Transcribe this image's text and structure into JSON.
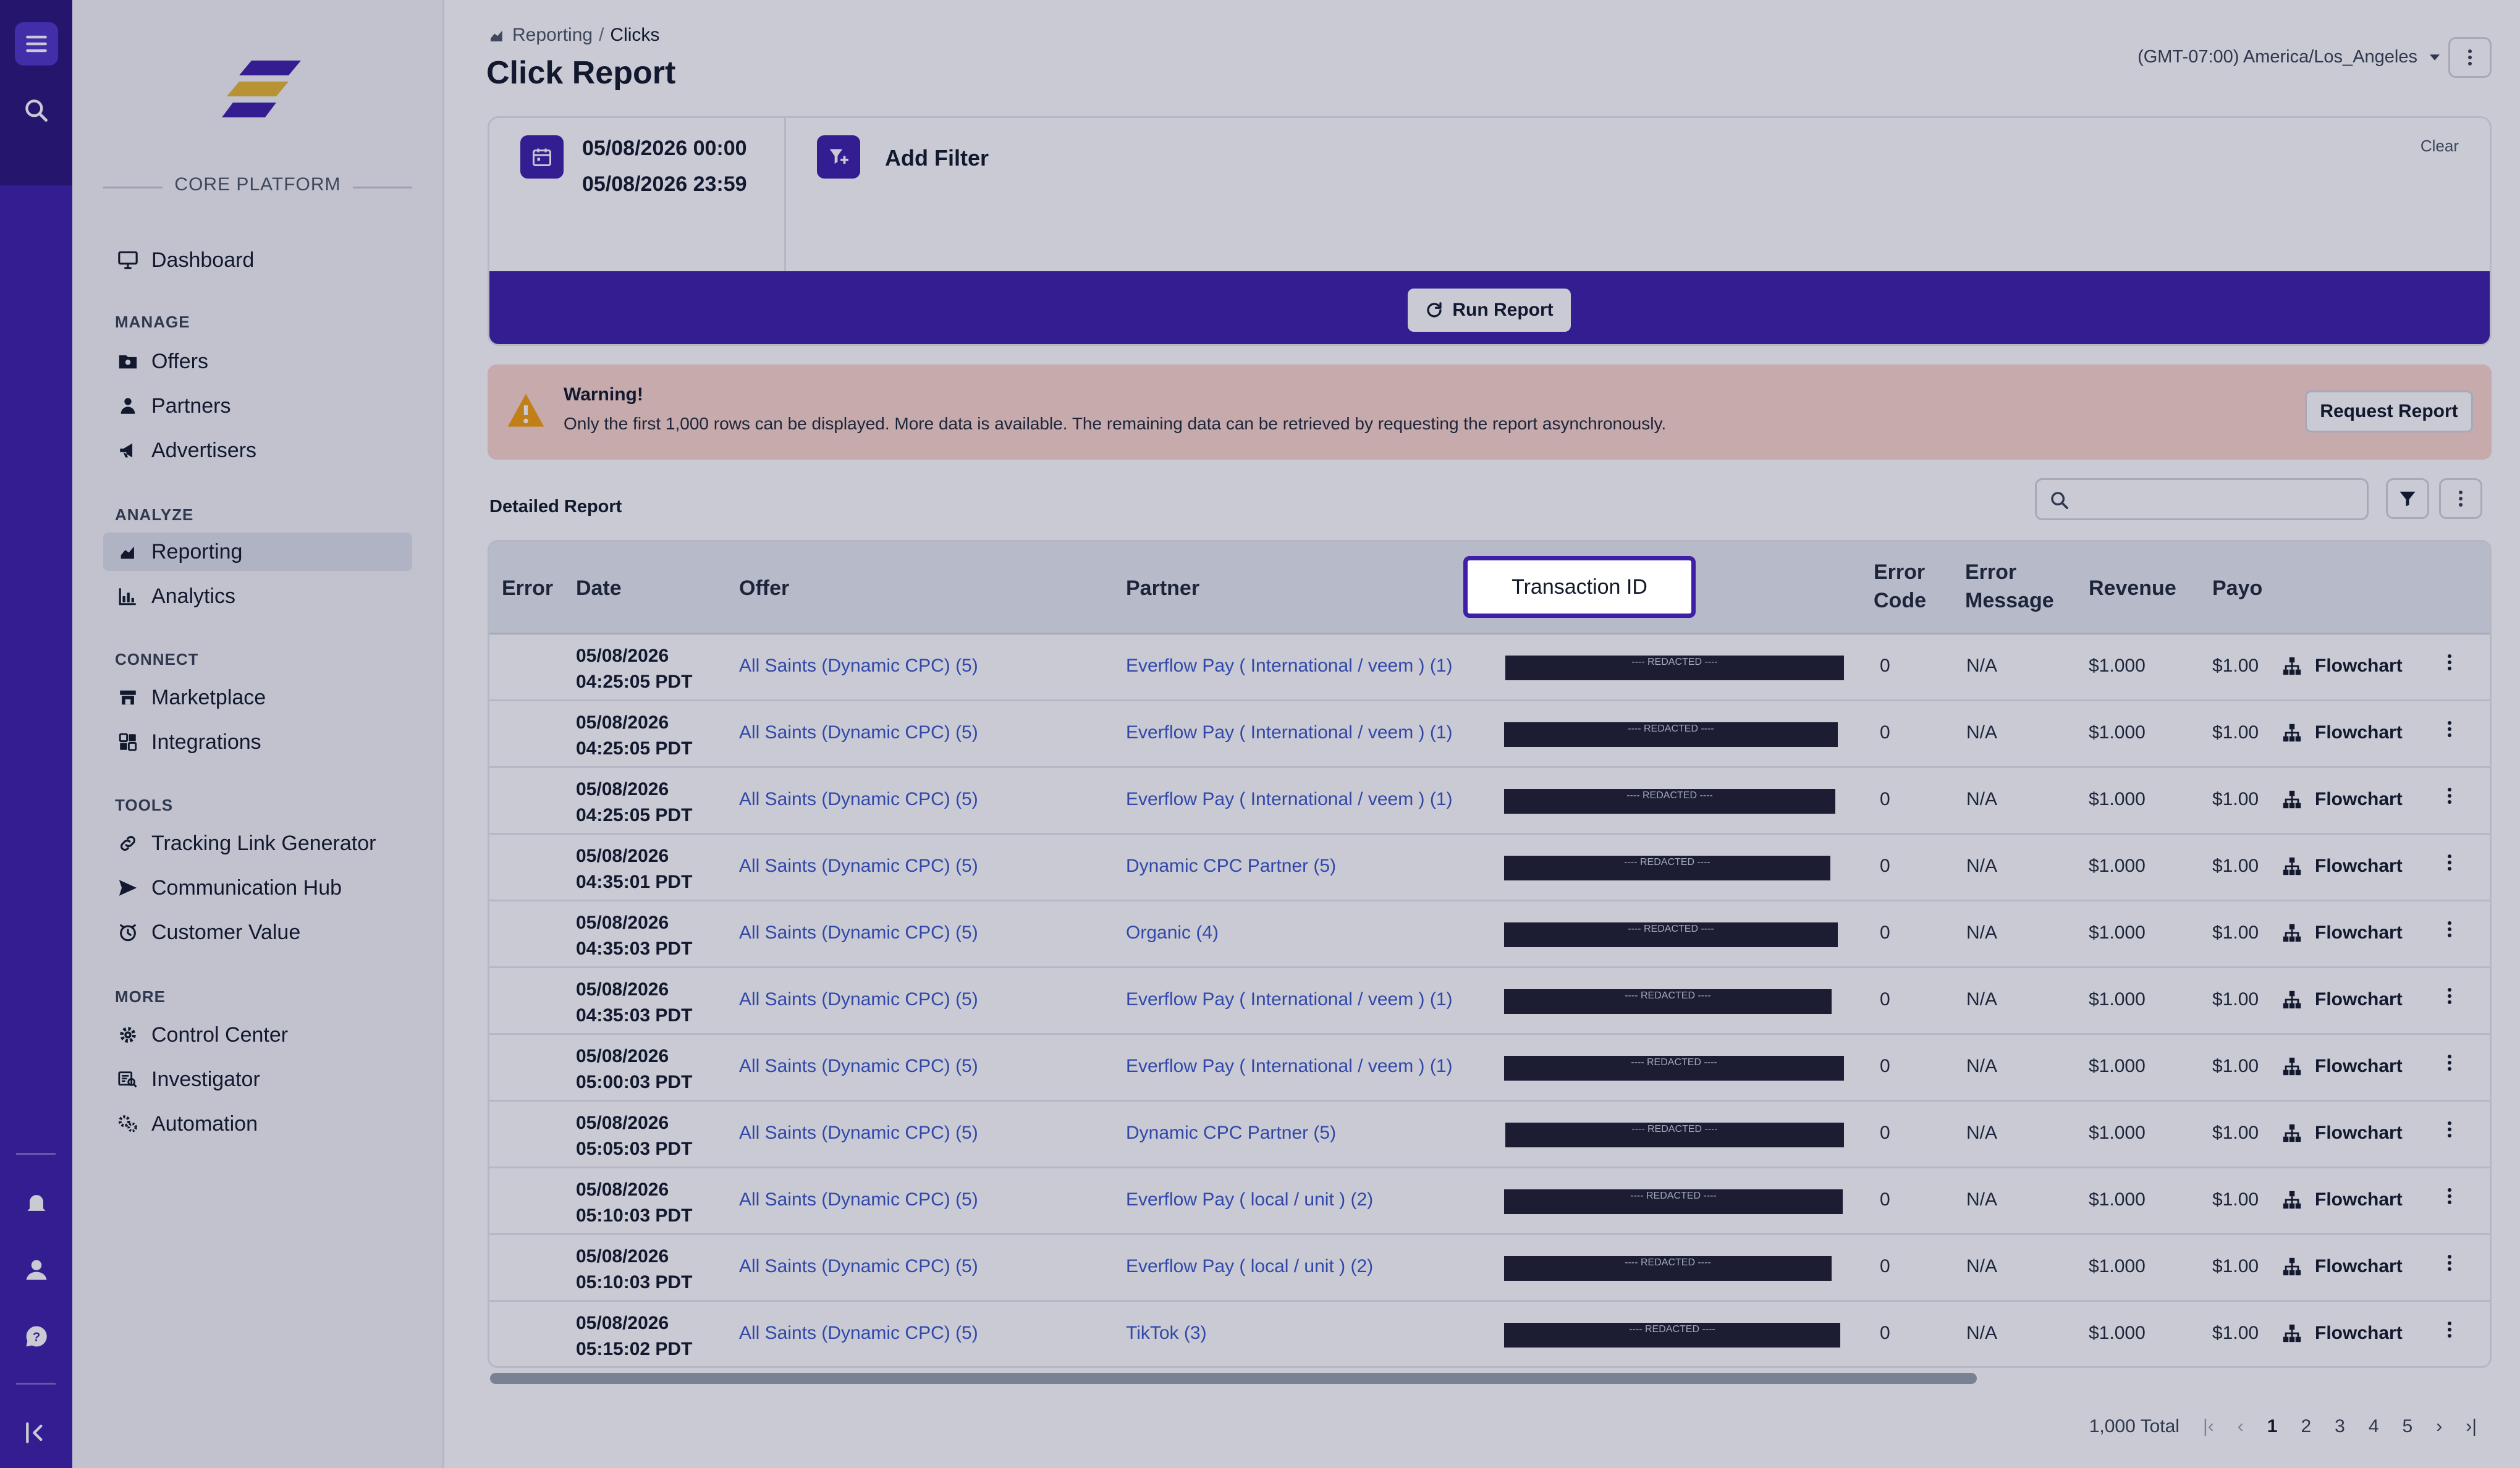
{
  "sidebar": {
    "platform_label": "CORE PLATFORM",
    "dashboard": "Dashboard",
    "sections": {
      "manage": "MANAGE",
      "analyze": "ANALYZE",
      "connect": "CONNECT",
      "tools": "TOOLS",
      "more": "MORE"
    },
    "items": {
      "offers": "Offers",
      "partners": "Partners",
      "advertisers": "Advertisers",
      "reporting": "Reporting",
      "analytics": "Analytics",
      "marketplace": "Marketplace",
      "integrations": "Integrations",
      "tracking_link_generator": "Tracking Link Generator",
      "communication_hub": "Communication Hub",
      "customer_value": "Customer Value",
      "control_center": "Control Center",
      "investigator": "Investigator",
      "automation": "Automation"
    }
  },
  "header": {
    "breadcrumb_parent": "Reporting",
    "breadcrumb_sep": "/",
    "breadcrumb_current": "Clicks",
    "title": "Click Report",
    "timezone": "(GMT-07:00) America/Los_Angeles"
  },
  "filters": {
    "date_start": "05/08/2026 00:00",
    "date_end": "05/08/2026 23:59",
    "add_filter": "Add Filter",
    "clear": "Clear",
    "run_report": "Run Report"
  },
  "warning": {
    "title": "Warning!",
    "message": "Only the first 1,000 rows can be displayed. More data is available. The remaining data can be retrieved by requesting the report asynchronously.",
    "button": "Request Report"
  },
  "report": {
    "title": "Detailed Report",
    "search_placeholder": "",
    "columns": {
      "error": "Error",
      "date": "Date",
      "offer": "Offer",
      "partner": "Partner",
      "transaction_id": "Transaction ID",
      "error_code_1": "Error",
      "error_code_2": "Code",
      "error_message_1": "Error",
      "error_message_2": "Message",
      "revenue": "Revenue",
      "payout": "Payo"
    },
    "rows": [
      {
        "date": "05/08/2026",
        "time": "04:25:05 PDT",
        "offer": "All Saints (Dynamic CPC) (5)",
        "partner": "Everflow Pay ( International / veem ) (1)",
        "transaction_id": "---- REDACTED ----",
        "error_code": "0",
        "error_message": "N/A",
        "revenue": "$1.000",
        "payout": "$1.00",
        "action": "Flowchart"
      },
      {
        "date": "05/08/2026",
        "time": "04:25:05 PDT",
        "offer": "All Saints (Dynamic CPC) (5)",
        "partner": "Everflow Pay ( International / veem ) (1)",
        "transaction_id": "---- REDACTED ----",
        "error_code": "0",
        "error_message": "N/A",
        "revenue": "$1.000",
        "payout": "$1.00",
        "action": "Flowchart"
      },
      {
        "date": "05/08/2026",
        "time": "04:25:05 PDT",
        "offer": "All Saints (Dynamic CPC) (5)",
        "partner": "Everflow Pay ( International / veem ) (1)",
        "transaction_id": "---- REDACTED ----",
        "error_code": "0",
        "error_message": "N/A",
        "revenue": "$1.000",
        "payout": "$1.00",
        "action": "Flowchart"
      },
      {
        "date": "05/08/2026",
        "time": "04:35:01 PDT",
        "offer": "All Saints (Dynamic CPC) (5)",
        "partner": "Dynamic CPC Partner (5)",
        "transaction_id": "---- REDACTED ----",
        "error_code": "0",
        "error_message": "N/A",
        "revenue": "$1.000",
        "payout": "$1.00",
        "action": "Flowchart"
      },
      {
        "date": "05/08/2026",
        "time": "04:35:03 PDT",
        "offer": "All Saints (Dynamic CPC) (5)",
        "partner": "Organic (4)",
        "transaction_id": "---- REDACTED ----",
        "error_code": "0",
        "error_message": "N/A",
        "revenue": "$1.000",
        "payout": "$1.00",
        "action": "Flowchart"
      },
      {
        "date": "05/08/2026",
        "time": "04:35:03 PDT",
        "offer": "All Saints (Dynamic CPC) (5)",
        "partner": "Everflow Pay ( International / veem ) (1)",
        "transaction_id": "---- REDACTED ----",
        "error_code": "0",
        "error_message": "N/A",
        "revenue": "$1.000",
        "payout": "$1.00",
        "action": "Flowchart"
      },
      {
        "date": "05/08/2026",
        "time": "05:00:03 PDT",
        "offer": "All Saints (Dynamic CPC) (5)",
        "partner": "Everflow Pay ( International / veem ) (1)",
        "transaction_id": "---- REDACTED ----",
        "error_code": "0",
        "error_message": "N/A",
        "revenue": "$1.000",
        "payout": "$1.00",
        "action": "Flowchart"
      },
      {
        "date": "05/08/2026",
        "time": "05:05:03 PDT",
        "offer": "All Saints (Dynamic CPC) (5)",
        "partner": "Dynamic CPC Partner (5)",
        "transaction_id": "---- REDACTED ----",
        "error_code": "0",
        "error_message": "N/A",
        "revenue": "$1.000",
        "payout": "$1.00",
        "action": "Flowchart"
      },
      {
        "date": "05/08/2026",
        "time": "05:10:03 PDT",
        "offer": "All Saints (Dynamic CPC) (5)",
        "partner": "Everflow Pay ( local / unit ) (2)",
        "transaction_id": "---- REDACTED ----",
        "error_code": "0",
        "error_message": "N/A",
        "revenue": "$1.000",
        "payout": "$1.00",
        "action": "Flowchart"
      },
      {
        "date": "05/08/2026",
        "time": "05:10:03 PDT",
        "offer": "All Saints (Dynamic CPC) (5)",
        "partner": "Everflow Pay ( local / unit ) (2)",
        "transaction_id": "---- REDACTED ----",
        "error_code": "0",
        "error_message": "N/A",
        "revenue": "$1.000",
        "payout": "$1.00",
        "action": "Flowchart"
      },
      {
        "date": "05/08/2026",
        "time": "05:15:02 PDT",
        "offer": "All Saints (Dynamic CPC) (5)",
        "partner": "TikTok (3)",
        "transaction_id": "---- REDACTED ----",
        "error_code": "0",
        "error_message": "N/A",
        "revenue": "$1.000",
        "payout": "$1.00",
        "action": "Flowchart"
      }
    ]
  },
  "pagination": {
    "total": "1,000 Total",
    "pages": [
      "1",
      "2",
      "3",
      "4",
      "5"
    ],
    "current": "1"
  },
  "colors": {
    "brand": "#3d1fa8",
    "link": "#3a56c7",
    "warning_bg": "#fbd6cb"
  }
}
